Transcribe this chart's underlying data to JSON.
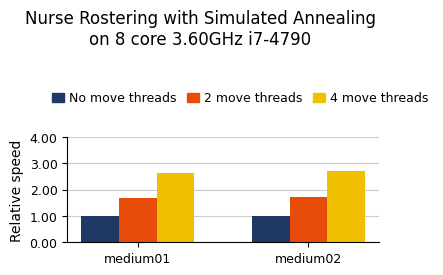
{
  "title": "Nurse Rostering with Simulated Annealing\non 8 core 3.60GHz i7-4790",
  "categories": [
    "medium01",
    "medium02"
  ],
  "series": [
    {
      "label": "No move threads",
      "color": "#1f3864",
      "values": [
        1.0,
        1.0
      ]
    },
    {
      "label": "2 move threads",
      "color": "#e84c0a",
      "values": [
        1.7,
        1.71
      ]
    },
    {
      "label": "4 move threads",
      "color": "#f0c000",
      "values": [
        2.65,
        2.7
      ]
    }
  ],
  "ylabel": "Relative speed",
  "ylim": [
    0.0,
    4.0
  ],
  "yticks": [
    0.0,
    1.0,
    2.0,
    3.0,
    4.0
  ],
  "ytick_labels": [
    "0.00",
    "1.00",
    "2.00",
    "3.00",
    "4.00"
  ],
  "bar_width": 0.22,
  "background_color": "#ffffff",
  "title_fontsize": 12,
  "label_fontsize": 10,
  "tick_fontsize": 9,
  "legend_fontsize": 9
}
